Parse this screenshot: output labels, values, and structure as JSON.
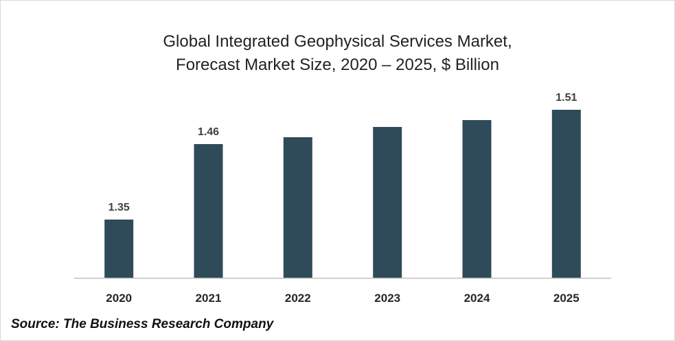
{
  "colors": {
    "bar": "#2f4b59",
    "axis": "#bfbfbf",
    "text": "#404040"
  },
  "chart_data": {
    "type": "bar",
    "title": "Global Integrated Geophysical Services Market,",
    "subtitle": "Forecast Market Size, 2020 – 2025, $ Billion",
    "categories": [
      "2020",
      "2021",
      "2022",
      "2023",
      "2024",
      "2025"
    ],
    "values": [
      1.35,
      1.46,
      1.47,
      1.485,
      1.495,
      1.51
    ],
    "data_labels": [
      "1.35",
      "1.46",
      "",
      "",
      "",
      "1.51"
    ],
    "xlabel": "",
    "ylabel": "",
    "ylim": [
      1.265,
      1.53
    ],
    "grid": false,
    "legend": "none"
  },
  "source": "Source: The Business Research Company"
}
